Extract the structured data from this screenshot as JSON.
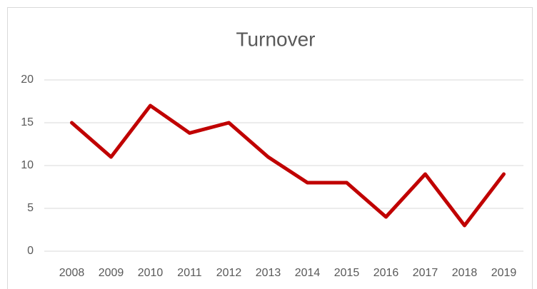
{
  "chart_data": {
    "type": "line",
    "title": "Turnover",
    "categories": [
      "2008",
      "2009",
      "2010",
      "2011",
      "2012",
      "2013",
      "2014",
      "2015",
      "2016",
      "2017",
      "2018",
      "2019"
    ],
    "values": [
      15,
      11,
      17,
      13.8,
      15,
      11,
      8,
      8,
      4,
      9,
      3,
      9
    ],
    "color": "#c00000",
    "ylim": [
      0,
      20
    ],
    "yticks": [
      0,
      5,
      10,
      15,
      20
    ],
    "grid": true
  }
}
